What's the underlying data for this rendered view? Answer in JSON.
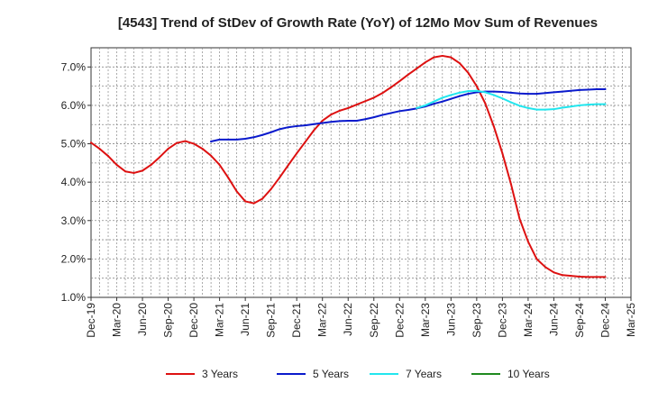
{
  "chart_data": {
    "type": "line",
    "title": "[4543]  Trend of StDev of Growth Rate (YoY) of 12Mo Mov Sum of Revenues",
    "xlabel": "",
    "ylabel": "",
    "x_unit": "months since Dec-19",
    "xlim": [
      0,
      63
    ],
    "ylim": [
      1.0,
      7.5
    ],
    "y_ticks": [
      {
        "value": 1.0,
        "label": "1.0%"
      },
      {
        "value": 2.0,
        "label": "2.0%"
      },
      {
        "value": 3.0,
        "label": "3.0%"
      },
      {
        "value": 4.0,
        "label": "4.0%"
      },
      {
        "value": 5.0,
        "label": "5.0%"
      },
      {
        "value": 6.0,
        "label": "6.0%"
      },
      {
        "value": 7.0,
        "label": "7.0%"
      }
    ],
    "x_ticks": [
      {
        "value": 0,
        "label": "Dec-19"
      },
      {
        "value": 3,
        "label": "Mar-20"
      },
      {
        "value": 6,
        "label": "Jun-20"
      },
      {
        "value": 9,
        "label": "Sep-20"
      },
      {
        "value": 12,
        "label": "Dec-20"
      },
      {
        "value": 15,
        "label": "Mar-21"
      },
      {
        "value": 18,
        "label": "Jun-21"
      },
      {
        "value": 21,
        "label": "Sep-21"
      },
      {
        "value": 24,
        "label": "Dec-21"
      },
      {
        "value": 27,
        "label": "Mar-22"
      },
      {
        "value": 30,
        "label": "Jun-22"
      },
      {
        "value": 33,
        "label": "Sep-22"
      },
      {
        "value": 36,
        "label": "Dec-22"
      },
      {
        "value": 39,
        "label": "Mar-23"
      },
      {
        "value": 42,
        "label": "Jun-23"
      },
      {
        "value": 45,
        "label": "Sep-23"
      },
      {
        "value": 48,
        "label": "Dec-23"
      },
      {
        "value": 51,
        "label": "Mar-24"
      },
      {
        "value": 54,
        "label": "Jun-24"
      },
      {
        "value": 57,
        "label": "Sep-24"
      },
      {
        "value": 60,
        "label": "Dec-24"
      },
      {
        "value": 63,
        "label": "Mar-25"
      }
    ],
    "grid": true,
    "legend_position": "bottom",
    "series": [
      {
        "name": "3 Years",
        "color": "#dd1111",
        "points": [
          [
            0,
            5.03
          ],
          [
            1,
            4.87
          ],
          [
            2,
            4.68
          ],
          [
            3,
            4.45
          ],
          [
            4,
            4.28
          ],
          [
            5,
            4.24
          ],
          [
            6,
            4.3
          ],
          [
            7,
            4.45
          ],
          [
            8,
            4.65
          ],
          [
            9,
            4.87
          ],
          [
            10,
            5.02
          ],
          [
            11,
            5.07
          ],
          [
            12,
            5.0
          ],
          [
            13,
            4.87
          ],
          [
            14,
            4.69
          ],
          [
            15,
            4.45
          ],
          [
            16,
            4.12
          ],
          [
            17,
            3.76
          ],
          [
            18,
            3.5
          ],
          [
            19,
            3.45
          ],
          [
            20,
            3.57
          ],
          [
            21,
            3.82
          ],
          [
            22,
            4.12
          ],
          [
            23,
            4.44
          ],
          [
            24,
            4.75
          ],
          [
            25,
            5.05
          ],
          [
            26,
            5.35
          ],
          [
            27,
            5.6
          ],
          [
            28,
            5.76
          ],
          [
            29,
            5.86
          ],
          [
            30,
            5.93
          ],
          [
            31,
            6.02
          ],
          [
            32,
            6.11
          ],
          [
            33,
            6.2
          ],
          [
            34,
            6.32
          ],
          [
            35,
            6.47
          ],
          [
            36,
            6.63
          ],
          [
            37,
            6.8
          ],
          [
            38,
            6.96
          ],
          [
            39,
            7.12
          ],
          [
            40,
            7.25
          ],
          [
            41,
            7.29
          ],
          [
            42,
            7.25
          ],
          [
            43,
            7.1
          ],
          [
            44,
            6.85
          ],
          [
            45,
            6.5
          ],
          [
            46,
            6.05
          ],
          [
            47,
            5.45
          ],
          [
            48,
            4.75
          ],
          [
            49,
            3.95
          ],
          [
            50,
            3.05
          ],
          [
            51,
            2.45
          ],
          [
            52,
            2.0
          ],
          [
            53,
            1.79
          ],
          [
            54,
            1.65
          ],
          [
            55,
            1.58
          ],
          [
            56,
            1.56
          ],
          [
            57,
            1.54
          ],
          [
            58,
            1.53
          ],
          [
            59,
            1.53
          ],
          [
            60,
            1.53
          ]
        ]
      },
      {
        "name": "5 Years",
        "color": "#0a1acc",
        "points": [
          [
            14,
            5.06
          ],
          [
            15,
            5.11
          ],
          [
            16,
            5.11
          ],
          [
            17,
            5.11
          ],
          [
            18,
            5.13
          ],
          [
            19,
            5.17
          ],
          [
            20,
            5.23
          ],
          [
            21,
            5.3
          ],
          [
            22,
            5.38
          ],
          [
            23,
            5.43
          ],
          [
            24,
            5.46
          ],
          [
            25,
            5.48
          ],
          [
            26,
            5.51
          ],
          [
            27,
            5.54
          ],
          [
            28,
            5.57
          ],
          [
            29,
            5.59
          ],
          [
            30,
            5.6
          ],
          [
            31,
            5.6
          ],
          [
            32,
            5.64
          ],
          [
            33,
            5.69
          ],
          [
            34,
            5.75
          ],
          [
            35,
            5.8
          ],
          [
            36,
            5.85
          ],
          [
            37,
            5.88
          ],
          [
            38,
            5.92
          ],
          [
            39,
            5.97
          ],
          [
            40,
            6.04
          ],
          [
            41,
            6.1
          ],
          [
            42,
            6.17
          ],
          [
            43,
            6.24
          ],
          [
            44,
            6.3
          ],
          [
            45,
            6.34
          ],
          [
            46,
            6.36
          ],
          [
            47,
            6.36
          ],
          [
            48,
            6.35
          ],
          [
            49,
            6.33
          ],
          [
            50,
            6.31
          ],
          [
            51,
            6.3
          ],
          [
            52,
            6.3
          ],
          [
            53,
            6.32
          ],
          [
            54,
            6.34
          ],
          [
            55,
            6.36
          ],
          [
            56,
            6.38
          ],
          [
            57,
            6.4
          ],
          [
            58,
            6.41
          ],
          [
            59,
            6.42
          ],
          [
            60,
            6.42
          ]
        ]
      },
      {
        "name": "7 Years",
        "color": "#22e6ee",
        "points": [
          [
            38,
            5.93
          ],
          [
            39,
            6.0
          ],
          [
            40,
            6.1
          ],
          [
            41,
            6.2
          ],
          [
            42,
            6.27
          ],
          [
            43,
            6.33
          ],
          [
            44,
            6.37
          ],
          [
            45,
            6.38
          ],
          [
            46,
            6.34
          ],
          [
            47,
            6.27
          ],
          [
            48,
            6.18
          ],
          [
            49,
            6.08
          ],
          [
            50,
            5.99
          ],
          [
            51,
            5.93
          ],
          [
            52,
            5.89
          ],
          [
            53,
            5.89
          ],
          [
            54,
            5.9
          ],
          [
            55,
            5.94
          ],
          [
            56,
            5.97
          ],
          [
            57,
            6.0
          ],
          [
            58,
            6.02
          ],
          [
            59,
            6.03
          ],
          [
            60,
            6.03
          ]
        ]
      },
      {
        "name": "10 Years",
        "color": "#1f8a1f",
        "points": []
      }
    ]
  }
}
